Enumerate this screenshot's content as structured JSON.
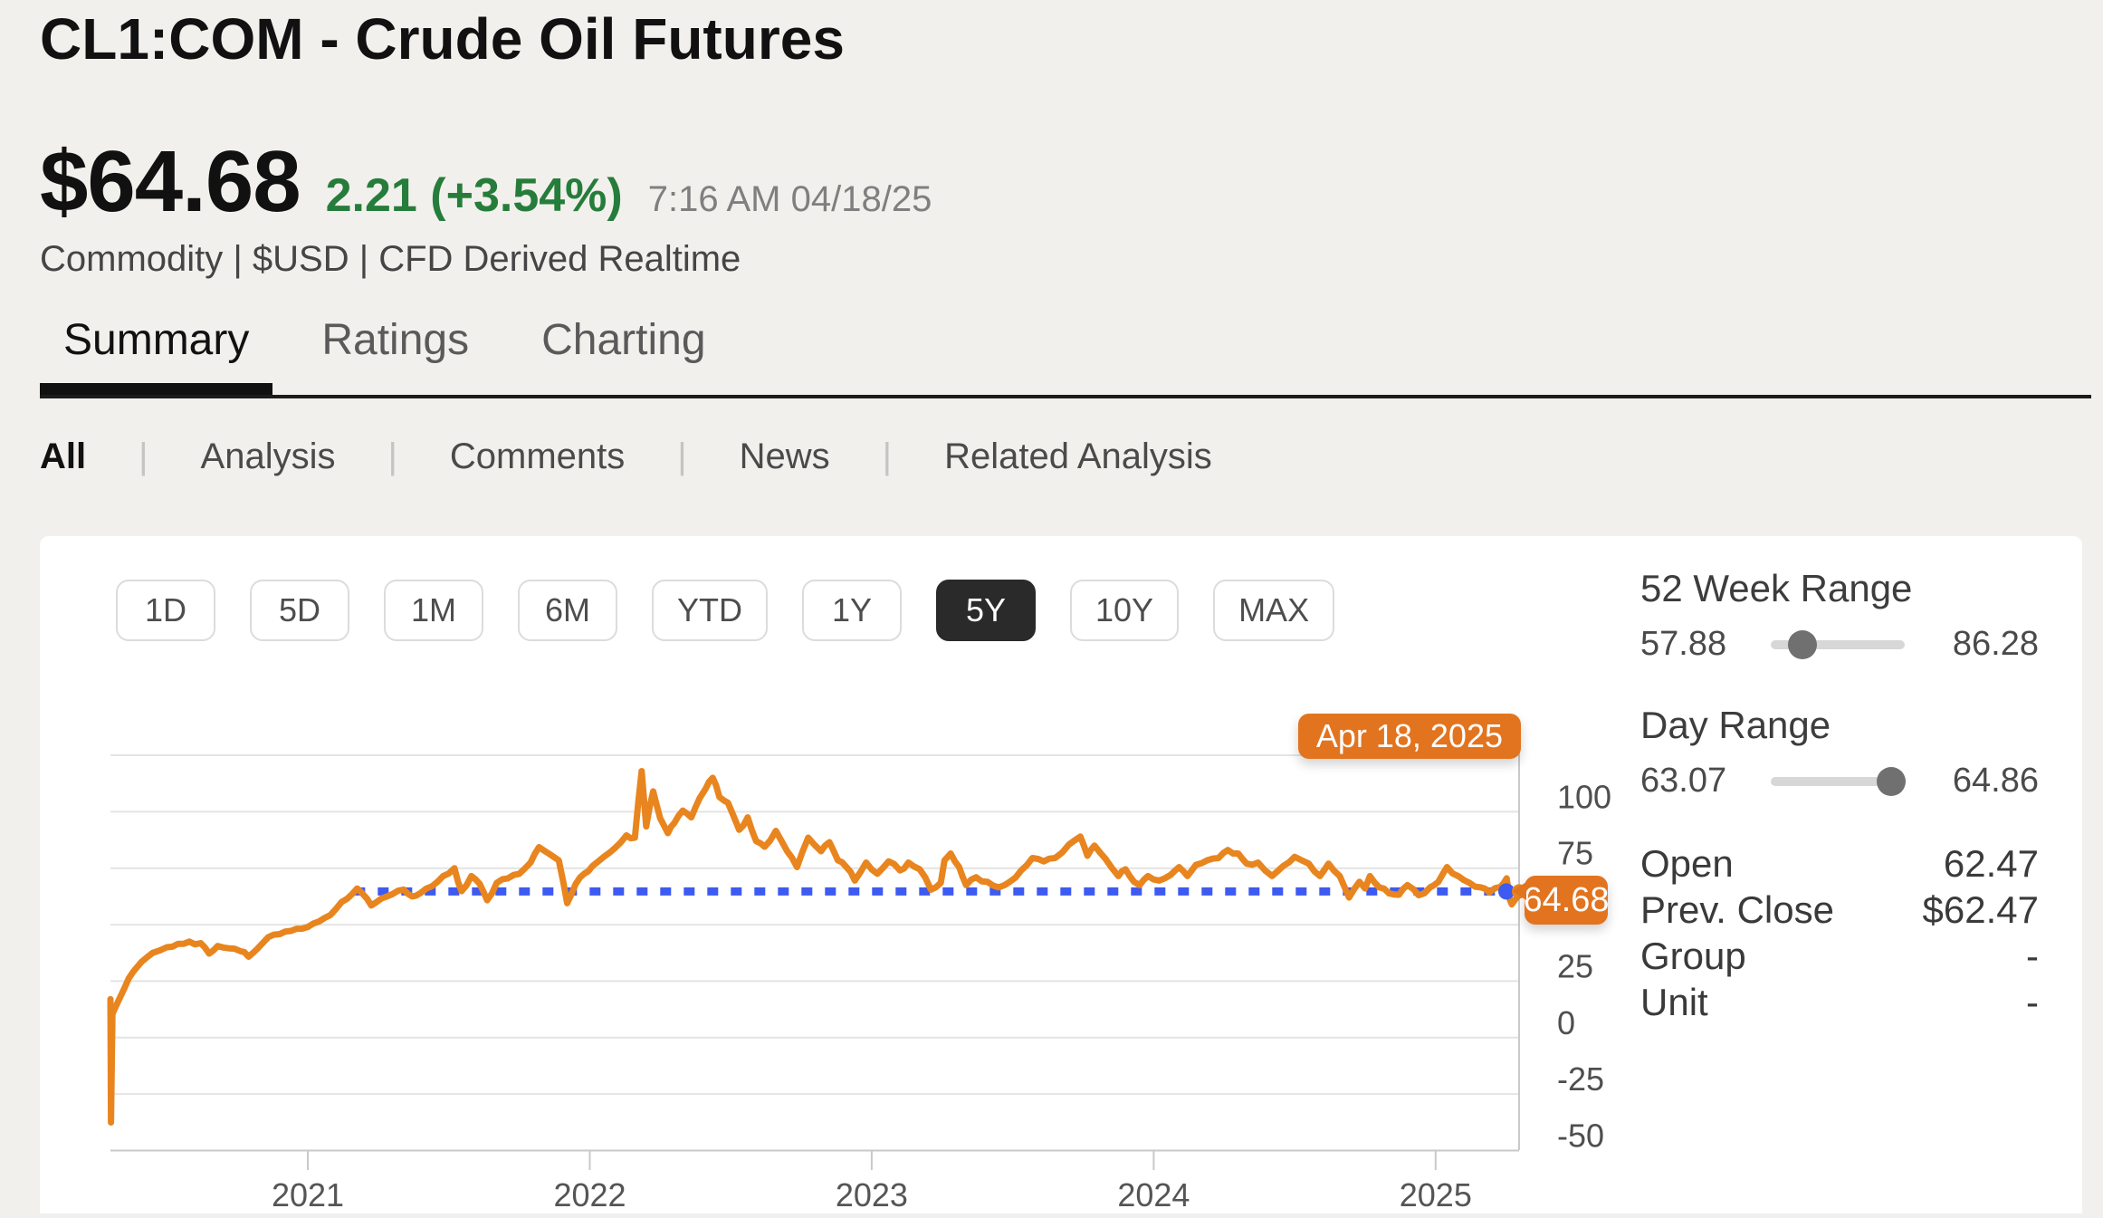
{
  "header": {
    "title": "CL1:COM - Crude Oil Futures",
    "price": "$64.68",
    "change": "2.21 (+3.54%)",
    "timestamp": "7:16 AM 04/18/25",
    "meta": "Commodity | $USD | CFD Derived Realtime"
  },
  "tabs": [
    {
      "label": "Summary",
      "active": true
    },
    {
      "label": "Ratings",
      "active": false
    },
    {
      "label": "Charting",
      "active": false
    }
  ],
  "subtabs": [
    {
      "label": "All",
      "active": true
    },
    {
      "label": "Analysis",
      "active": false
    },
    {
      "label": "Comments",
      "active": false
    },
    {
      "label": "News",
      "active": false
    },
    {
      "label": "Related Analysis",
      "active": false
    }
  ],
  "range_buttons": [
    {
      "label": "1D",
      "active": false
    },
    {
      "label": "5D",
      "active": false
    },
    {
      "label": "1M",
      "active": false
    },
    {
      "label": "6M",
      "active": false
    },
    {
      "label": "YTD",
      "active": false
    },
    {
      "label": "1Y",
      "active": false
    },
    {
      "label": "5Y",
      "active": true
    },
    {
      "label": "10Y",
      "active": false
    },
    {
      "label": "MAX",
      "active": false
    }
  ],
  "colors": {
    "line_orange": "#e8851f",
    "badge_orange": "#e2741f",
    "reference_blue": "#3d5af1",
    "gridline": "#e4e4e4",
    "axis": "#c9c9c9",
    "axis_text": "#4f4f4f",
    "positive_green": "#267d3b"
  },
  "stats": {
    "week52": {
      "label": "52 Week Range",
      "low": "57.88",
      "high": "86.28",
      "low_val": 57.88,
      "high_val": 86.28
    },
    "day": {
      "label": "Day Range",
      "low": "63.07",
      "high": "64.86",
      "low_val": 63.07,
      "high_val": 64.86
    },
    "rows": [
      {
        "label": "Open",
        "value": "62.47"
      },
      {
        "label": "Prev. Close",
        "value": "$62.47"
      },
      {
        "label": "Group",
        "value": "-"
      },
      {
        "label": "Unit",
        "value": "-"
      }
    ]
  },
  "chart_data": {
    "type": "line",
    "series_name": "CL1:COM price",
    "tooltip_date": "Apr 18, 2025",
    "last_price_label": "64.68",
    "reference_line": 64.68,
    "last_value": 64.68,
    "x_domain_decimal_years": [
      2020.3,
      2025.296
    ],
    "ylim": [
      -53,
      131
    ],
    "y_gridlines": [
      125,
      100,
      75,
      50,
      25,
      0,
      -25,
      -50
    ],
    "y_tick_labels": [
      "100",
      "75",
      "50",
      "25",
      "0",
      "-25",
      "-50"
    ],
    "y_tick_values": [
      100,
      75,
      50,
      25,
      0,
      -25,
      -50
    ],
    "x_tick_labels": [
      "2021",
      "2022",
      "2023",
      "2024",
      "2025"
    ],
    "x_tick_values": [
      2021,
      2022,
      2023,
      2024,
      2025
    ],
    "legend": "none",
    "grid": "horizontal",
    "points": [
      [
        2020.3,
        17
      ],
      [
        2020.302,
        -37.6
      ],
      [
        2020.307,
        10.5
      ],
      [
        2020.32,
        14
      ],
      [
        2020.35,
        22
      ],
      [
        2020.38,
        29
      ],
      [
        2020.41,
        33.5
      ],
      [
        2020.45,
        37.5
      ],
      [
        2020.5,
        40
      ],
      [
        2020.54,
        41.5
      ],
      [
        2020.58,
        42.5
      ],
      [
        2020.62,
        41.8
      ],
      [
        2020.65,
        37.2
      ],
      [
        2020.68,
        40.5
      ],
      [
        2020.72,
        39.5
      ],
      [
        2020.76,
        38.3
      ],
      [
        2020.79,
        35.8
      ],
      [
        2020.82,
        39.2
      ],
      [
        2020.86,
        44.5
      ],
      [
        2020.9,
        45.8
      ],
      [
        2020.94,
        47.2
      ],
      [
        2020.98,
        48.2
      ],
      [
        2021.02,
        50.5
      ],
      [
        2021.06,
        53
      ],
      [
        2021.1,
        57
      ],
      [
        2021.14,
        61.5
      ],
      [
        2021.175,
        66
      ],
      [
        2021.21,
        61.5
      ],
      [
        2021.225,
        58.5
      ],
      [
        2021.26,
        61.5
      ],
      [
        2021.3,
        63.5
      ],
      [
        2021.34,
        65.5
      ],
      [
        2021.37,
        62.5
      ],
      [
        2021.4,
        64
      ],
      [
        2021.44,
        67
      ],
      [
        2021.48,
        71.5
      ],
      [
        2021.52,
        75
      ],
      [
        2021.545,
        64.8
      ],
      [
        2021.58,
        71.5
      ],
      [
        2021.61,
        68
      ],
      [
        2021.636,
        60.8
      ],
      [
        2021.67,
        68.5
      ],
      [
        2021.71,
        70.5
      ],
      [
        2021.75,
        72.5
      ],
      [
        2021.79,
        77.5
      ],
      [
        2021.82,
        84.3
      ],
      [
        2021.86,
        81
      ],
      [
        2021.89,
        78.5
      ],
      [
        2021.92,
        59.5
      ],
      [
        2021.95,
        68
      ],
      [
        2021.98,
        72.5
      ],
      [
        2022.01,
        76
      ],
      [
        2022.05,
        80
      ],
      [
        2022.09,
        84
      ],
      [
        2022.13,
        89.5
      ],
      [
        2022.16,
        88.5
      ],
      [
        2022.184,
        118
      ],
      [
        2022.2,
        93.5
      ],
      [
        2022.225,
        109
      ],
      [
        2022.25,
        97
      ],
      [
        2022.277,
        90.5
      ],
      [
        2022.3,
        95
      ],
      [
        2022.33,
        100.5
      ],
      [
        2022.36,
        97.5
      ],
      [
        2022.39,
        106
      ],
      [
        2022.41,
        110
      ],
      [
        2022.436,
        115
      ],
      [
        2022.46,
        106.5
      ],
      [
        2022.49,
        104
      ],
      [
        2022.53,
        92
      ],
      [
        2022.56,
        97.5
      ],
      [
        2022.59,
        87
      ],
      [
        2022.62,
        84.5
      ],
      [
        2022.66,
        91.5
      ],
      [
        2022.7,
        82.5
      ],
      [
        2022.735,
        75.5
      ],
      [
        2022.775,
        88.5
      ],
      [
        2022.82,
        82.5
      ],
      [
        2022.85,
        86.5
      ],
      [
        2022.88,
        78.5
      ],
      [
        2022.91,
        75.5
      ],
      [
        2022.94,
        69.5
      ],
      [
        2022.98,
        77.5
      ],
      [
        2023.02,
        72.5
      ],
      [
        2023.06,
        78
      ],
      [
        2023.1,
        74
      ],
      [
        2023.13,
        77.5
      ],
      [
        2023.17,
        74.5
      ],
      [
        2023.21,
        65.5
      ],
      [
        2023.245,
        68.5
      ],
      [
        2023.258,
        78.5
      ],
      [
        2023.28,
        81.5
      ],
      [
        2023.31,
        75.5
      ],
      [
        2023.335,
        67.5
      ],
      [
        2023.37,
        71
      ],
      [
        2023.41,
        69
      ],
      [
        2023.45,
        66.5
      ],
      [
        2023.49,
        69
      ],
      [
        2023.53,
        74
      ],
      [
        2023.57,
        79.5
      ],
      [
        2023.61,
        78
      ],
      [
        2023.65,
        79.5
      ],
      [
        2023.7,
        85.5
      ],
      [
        2023.74,
        89
      ],
      [
        2023.765,
        80.5
      ],
      [
        2023.79,
        85
      ],
      [
        2023.83,
        79
      ],
      [
        2023.875,
        71.5
      ],
      [
        2023.9,
        74.5
      ],
      [
        2023.93,
        69
      ],
      [
        2023.95,
        67.5
      ],
      [
        2023.98,
        71.5
      ],
      [
        2024.02,
        69.5
      ],
      [
        2024.06,
        72
      ],
      [
        2024.09,
        75.5
      ],
      [
        2024.12,
        71.5
      ],
      [
        2024.15,
        76.5
      ],
      [
        2024.19,
        78.5
      ],
      [
        2024.23,
        79.5
      ],
      [
        2024.263,
        83
      ],
      [
        2024.3,
        81.5
      ],
      [
        2024.33,
        77
      ],
      [
        2024.37,
        77.5
      ],
      [
        2024.42,
        71.5
      ],
      [
        2024.46,
        76
      ],
      [
        2024.5,
        80
      ],
      [
        2024.55,
        77
      ],
      [
        2024.59,
        71.5
      ],
      [
        2024.62,
        77
      ],
      [
        2024.66,
        71.5
      ],
      [
        2024.693,
        62
      ],
      [
        2024.73,
        69
      ],
      [
        2024.75,
        66
      ],
      [
        2024.767,
        71.5
      ],
      [
        2024.8,
        66.5
      ],
      [
        2024.835,
        63.8
      ],
      [
        2024.87,
        63.2
      ],
      [
        2024.9,
        67.5
      ],
      [
        2024.94,
        63
      ],
      [
        2024.98,
        66.5
      ],
      [
        2025.01,
        69
      ],
      [
        2025.04,
        75.5
      ],
      [
        2025.08,
        71.5
      ],
      [
        2025.12,
        68.5
      ],
      [
        2025.16,
        66.5
      ],
      [
        2025.19,
        64.2
      ],
      [
        2025.23,
        66.8
      ],
      [
        2025.252,
        70.5
      ],
      [
        2025.262,
        61.5
      ],
      [
        2025.27,
        59
      ],
      [
        2025.28,
        60.8
      ],
      [
        2025.29,
        62.3
      ],
      [
        2025.296,
        64.68
      ]
    ]
  }
}
